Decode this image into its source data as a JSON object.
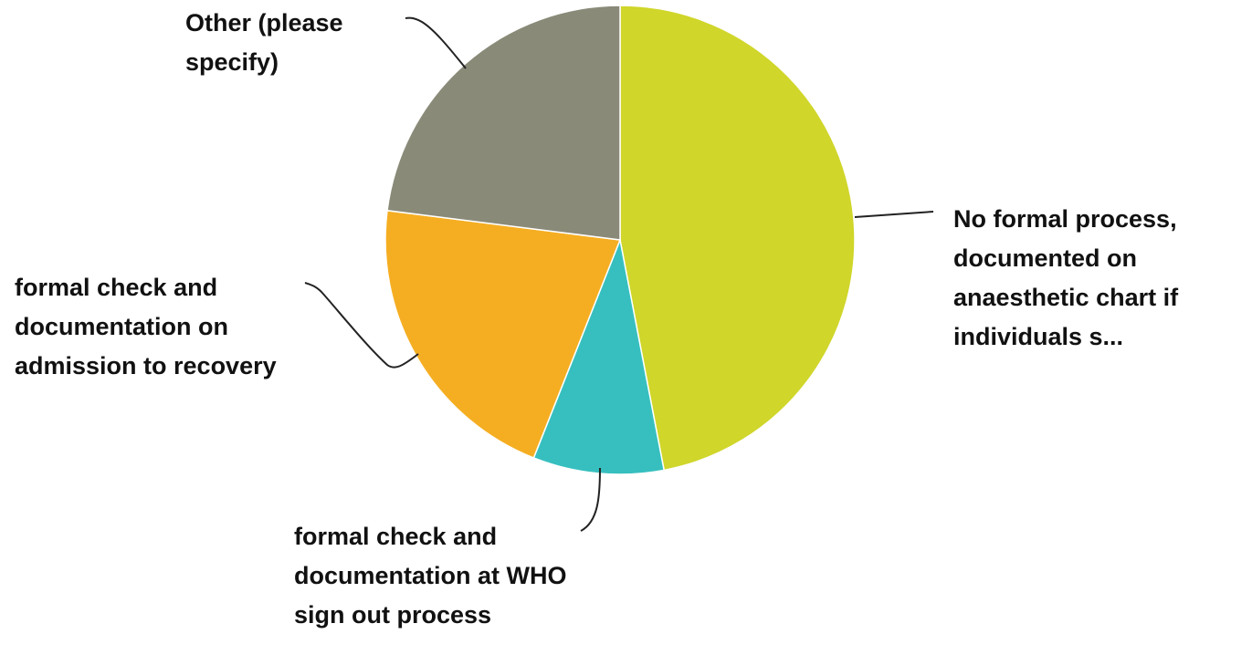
{
  "chart_data": {
    "type": "pie",
    "title": "",
    "start_angle_deg": 0,
    "direction": "clockwise",
    "slices": [
      {
        "label": "No formal process, documented on anaesthetic chart if individuals s...",
        "value": 47,
        "color": "#d0d62a"
      },
      {
        "label": "formal check and documentation at WHO sign out process",
        "value": 9,
        "color": "#37bfbf"
      },
      {
        "label": "formal check and documentation on admission to recovery",
        "value": 21,
        "color": "#f5ae22"
      },
      {
        "label": "Other (please specify)",
        "value": 23,
        "color": "#8a8a79"
      }
    ],
    "legend": "none",
    "labels": "outside-with-leader-lines"
  }
}
